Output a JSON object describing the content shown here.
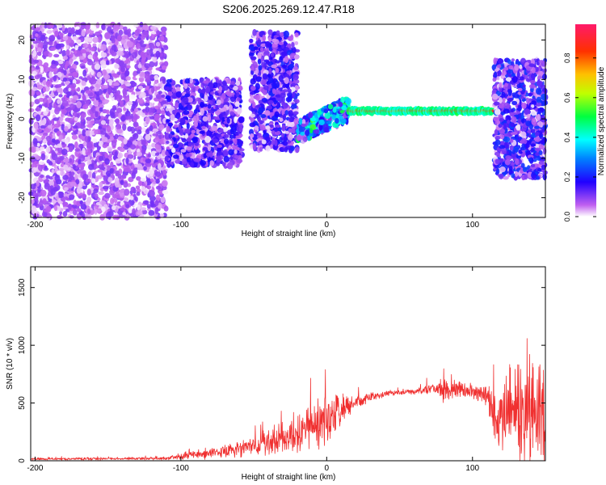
{
  "title": "S206.2025.269.12.47.R18",
  "chart_data": [
    {
      "type": "heatmap",
      "title": "S206.2025.269.12.47.R18",
      "xlabel": "Height of straight line (km)",
      "ylabel": "Frequency (Hz)",
      "xlim": [
        -203,
        150
      ],
      "ylim": [
        -25,
        24
      ],
      "xticks": [
        -200,
        -100,
        0,
        100
      ],
      "yticks": [
        -20,
        -10,
        0,
        10,
        20
      ],
      "colorbar": {
        "label": "Normalized spectral amplitude",
        "range": [
          0,
          0.97
        ],
        "ticks": [
          0.0,
          0.2,
          0.4,
          0.6,
          0.8
        ],
        "colormap": [
          "#ffffff",
          "#a020f0",
          "#0000ff",
          "#00ffff",
          "#00ff00",
          "#ffff00",
          "#ff8000",
          "#ff0000",
          "#ff1493"
        ]
      },
      "regions": [
        {
          "name": "noise",
          "x": [
            -203,
            -110
          ],
          "freq": [
            -25,
            24
          ],
          "amplitude": 0.12
        },
        {
          "name": "scattered",
          "x": [
            -110,
            -58
          ],
          "freq": [
            -12,
            10
          ],
          "amplitude": 0.2
        },
        {
          "name": "plume",
          "x": [
            -52,
            -20
          ],
          "freq": [
            -8,
            22
          ],
          "amplitude": 0.22
        },
        {
          "name": "signal-onset",
          "x": [
            -20,
            15
          ],
          "freq": [
            -5,
            8
          ],
          "amplitude": 0.45
        },
        {
          "name": "steady-tone",
          "x": [
            15,
            115
          ],
          "freq": [
            1.5,
            2.5
          ],
          "amplitude": 0.97
        },
        {
          "name": "late-scatter",
          "x": [
            115,
            150
          ],
          "freq": [
            -15,
            15
          ],
          "amplitude": 0.25
        }
      ]
    },
    {
      "type": "line",
      "xlabel": "Height of straight line (km)",
      "ylabel": "SNR (10 * v/v)",
      "xlim": [
        -203,
        150
      ],
      "ylim": [
        0,
        1680
      ],
      "xticks": [
        -200,
        -100,
        0,
        100
      ],
      "yticks": [
        0,
        500,
        1000,
        1500
      ],
      "color": "#f03030",
      "series": [
        {
          "name": "SNR",
          "x": [
            -203,
            -110,
            -100,
            -80,
            -60,
            -40,
            -20,
            0,
            20,
            40,
            60,
            75,
            80,
            95,
            110,
            115,
            130,
            150
          ],
          "y": [
            15,
            20,
            40,
            60,
            100,
            160,
            220,
            360,
            510,
            580,
            600,
            620,
            610,
            610,
            560,
            400,
            420,
            450
          ],
          "spread": [
            12,
            15,
            40,
            50,
            80,
            130,
            180,
            260,
            60,
            30,
            30,
            60,
            130,
            80,
            100,
            350,
            500,
            600
          ]
        }
      ]
    }
  ]
}
